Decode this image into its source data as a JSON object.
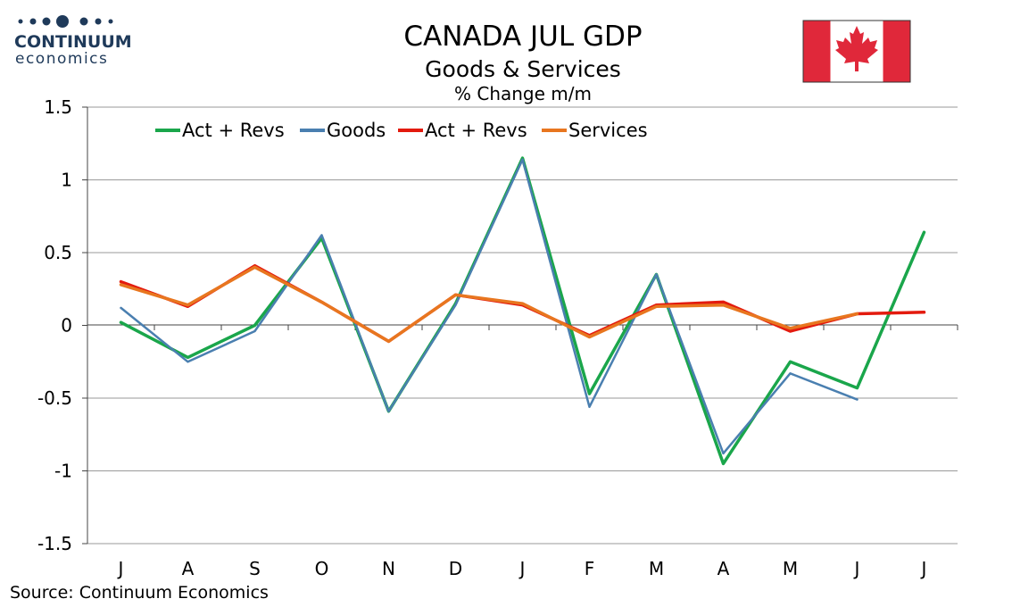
{
  "logo": {
    "line1": "CONTINUUM",
    "line2": "economics",
    "color": "#1f3a5a"
  },
  "source": "Source: Continuum Economics",
  "colors": {
    "green": "#1aa64b",
    "blue": "#4a7fb0",
    "red": "#e31a0e",
    "orange": "#e8761f",
    "grid": "#9a9a9a",
    "flag_red": "#e0283a"
  },
  "chart_data": {
    "type": "line",
    "title": "CANADA JUL GDP",
    "subtitle": "Goods & Services",
    "subtitle2": "% Change m/m",
    "categories": [
      "J",
      "A",
      "S",
      "O",
      "N",
      "D",
      "J",
      "F",
      "M",
      "A",
      "M",
      "J",
      "J"
    ],
    "ylim": [
      -1.5,
      1.5
    ],
    "yticks": [
      1.5,
      1,
      0.5,
      0,
      -0.5,
      -1,
      -1.5
    ],
    "ytick_labels": [
      "1.5",
      "1",
      "0.5",
      "0",
      "-0.5",
      "-1",
      "-1.5"
    ],
    "grid": true,
    "legend_position": "top-left",
    "series": [
      {
        "name": "Act + Revs",
        "color": "#1aa64b",
        "values": [
          0.02,
          -0.22,
          0.0,
          0.6,
          -0.59,
          0.15,
          1.15,
          -0.47,
          0.35,
          -0.95,
          -0.25,
          -0.43,
          0.64
        ]
      },
      {
        "name": "Goods",
        "color": "#4a7fb0",
        "values": [
          0.12,
          -0.25,
          -0.04,
          0.62,
          -0.59,
          0.14,
          1.14,
          -0.56,
          0.35,
          -0.88,
          -0.33,
          -0.51,
          null
        ]
      },
      {
        "name": "Act + Revs",
        "color": "#e31a0e",
        "values": [
          0.3,
          0.13,
          0.41,
          0.16,
          -0.11,
          0.21,
          0.14,
          -0.07,
          0.14,
          0.16,
          -0.04,
          0.08,
          0.09
        ]
      },
      {
        "name": "Services",
        "color": "#e8761f",
        "values": [
          0.28,
          0.14,
          0.4,
          0.16,
          -0.11,
          0.21,
          0.15,
          -0.08,
          0.13,
          0.14,
          -0.02,
          0.08,
          null
        ]
      }
    ]
  }
}
